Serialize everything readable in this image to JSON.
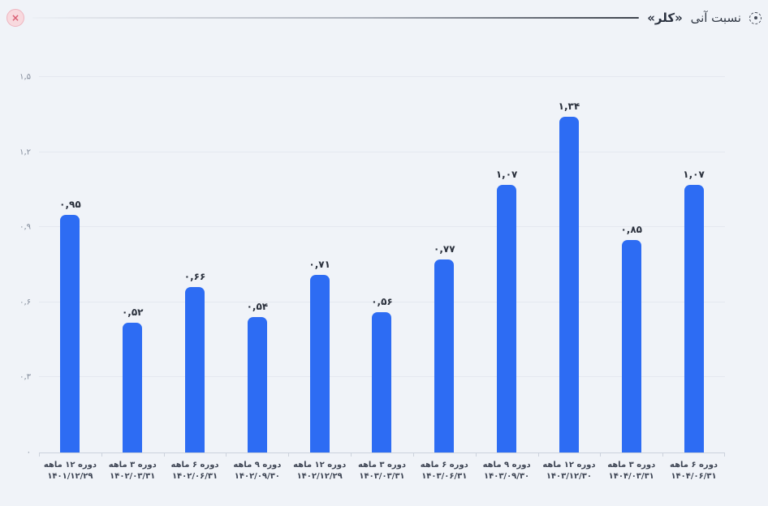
{
  "header": {
    "title_prefix": "نسبت آنی",
    "title_emphasis": "«کلر»",
    "close_glyph": "×"
  },
  "chart_data": {
    "type": "bar",
    "title": "نسبت آنی «کلر»",
    "xlabel": "",
    "ylabel": "",
    "ylim": [
      0,
      1.5
    ],
    "grid": true,
    "bar_color": "#2d6cf3",
    "yticks": [
      {
        "value": 0,
        "label": "۰"
      },
      {
        "value": 0.3,
        "label": "۰,۳"
      },
      {
        "value": 0.6,
        "label": "۰,۶"
      },
      {
        "value": 0.9,
        "label": "۰,۹"
      },
      {
        "value": 1.2,
        "label": "۱,۲"
      },
      {
        "value": 1.5,
        "label": "۱,۵"
      }
    ],
    "categories": [
      {
        "period": "دوره ۱۲ ماهه",
        "date": "۱۴۰۱/۱۲/۲۹"
      },
      {
        "period": "دوره ۳ ماهه",
        "date": "۱۴۰۲/۰۳/۳۱"
      },
      {
        "period": "دوره ۶ ماهه",
        "date": "۱۴۰۲/۰۶/۳۱"
      },
      {
        "period": "دوره ۹ ماهه",
        "date": "۱۴۰۲/۰۹/۳۰"
      },
      {
        "period": "دوره ۱۲ ماهه",
        "date": "۱۴۰۲/۱۲/۲۹"
      },
      {
        "period": "دوره ۳ ماهه",
        "date": "۱۴۰۳/۰۳/۳۱"
      },
      {
        "period": "دوره ۶ ماهه",
        "date": "۱۴۰۳/۰۶/۳۱"
      },
      {
        "period": "دوره ۹ ماهه",
        "date": "۱۴۰۳/۰۹/۳۰"
      },
      {
        "period": "دوره ۱۲ ماهه",
        "date": "۱۴۰۳/۱۲/۳۰"
      },
      {
        "period": "دوره ۳ ماهه",
        "date": "۱۴۰۴/۰۳/۳۱"
      },
      {
        "period": "دوره ۶ ماهه",
        "date": "۱۴۰۴/۰۶/۳۱"
      }
    ],
    "values": [
      0.95,
      0.52,
      0.66,
      0.54,
      0.71,
      0.56,
      0.77,
      1.07,
      1.34,
      0.85,
      1.07
    ],
    "value_labels": [
      "۰,۹۵",
      "۰,۵۲",
      "۰,۶۶",
      "۰,۵۴",
      "۰,۷۱",
      "۰,۵۶",
      "۰,۷۷",
      "۱,۰۷",
      "۱,۳۴",
      "۰,۸۵",
      "۱,۰۷"
    ]
  }
}
